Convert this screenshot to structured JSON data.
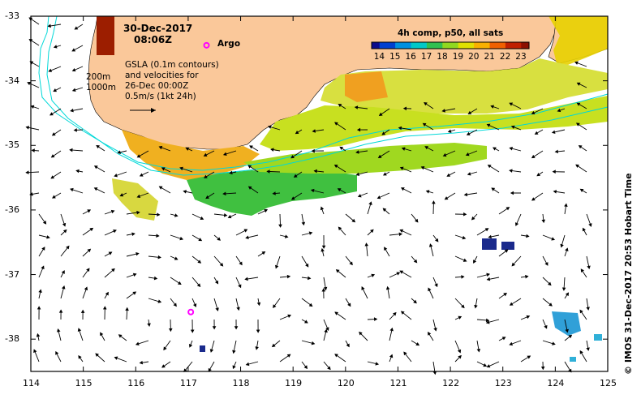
{
  "header": {
    "date": "30-Dec-2017",
    "time": "08:06Z",
    "argo_label": "Argo"
  },
  "legend": {
    "depth_200": "200m",
    "depth_1000": "1000m",
    "gsla_line1": "GSLA (0.1m contours)",
    "gsla_line2": "and velocities for",
    "gsla_line3": "26-Dec 00:00Z",
    "velocity_scale": "0.5m/s (1kt 24h)"
  },
  "colorbar": {
    "title": "4h comp, p50, all sats",
    "ticks": [
      "14",
      "15",
      "16",
      "17",
      "18",
      "19",
      "20",
      "21",
      "22",
      "23"
    ],
    "min": 13.5,
    "max": 23.5
  },
  "credit": "© IMOS 31-Dec-2017 20:53 Hobart Time",
  "axes": {
    "x_ticks": [
      "114",
      "115",
      "116",
      "117",
      "118",
      "119",
      "120",
      "121",
      "122",
      "123",
      "124",
      "125"
    ],
    "y_ticks": [
      "-33",
      "-34",
      "-35",
      "-36",
      "-37",
      "-38"
    ],
    "lon_range": [
      114,
      125
    ],
    "lat_range": [
      -38.5,
      -33
    ]
  },
  "argo_floats": [
    {
      "lon": 117.35,
      "lat": -33.45
    },
    {
      "lon": 117.05,
      "lat": -37.58
    }
  ],
  "colors": {
    "land": "#fac89a",
    "bathymetry": "#00d8d8",
    "argo": "#ff00ff",
    "frame": "#000000"
  }
}
